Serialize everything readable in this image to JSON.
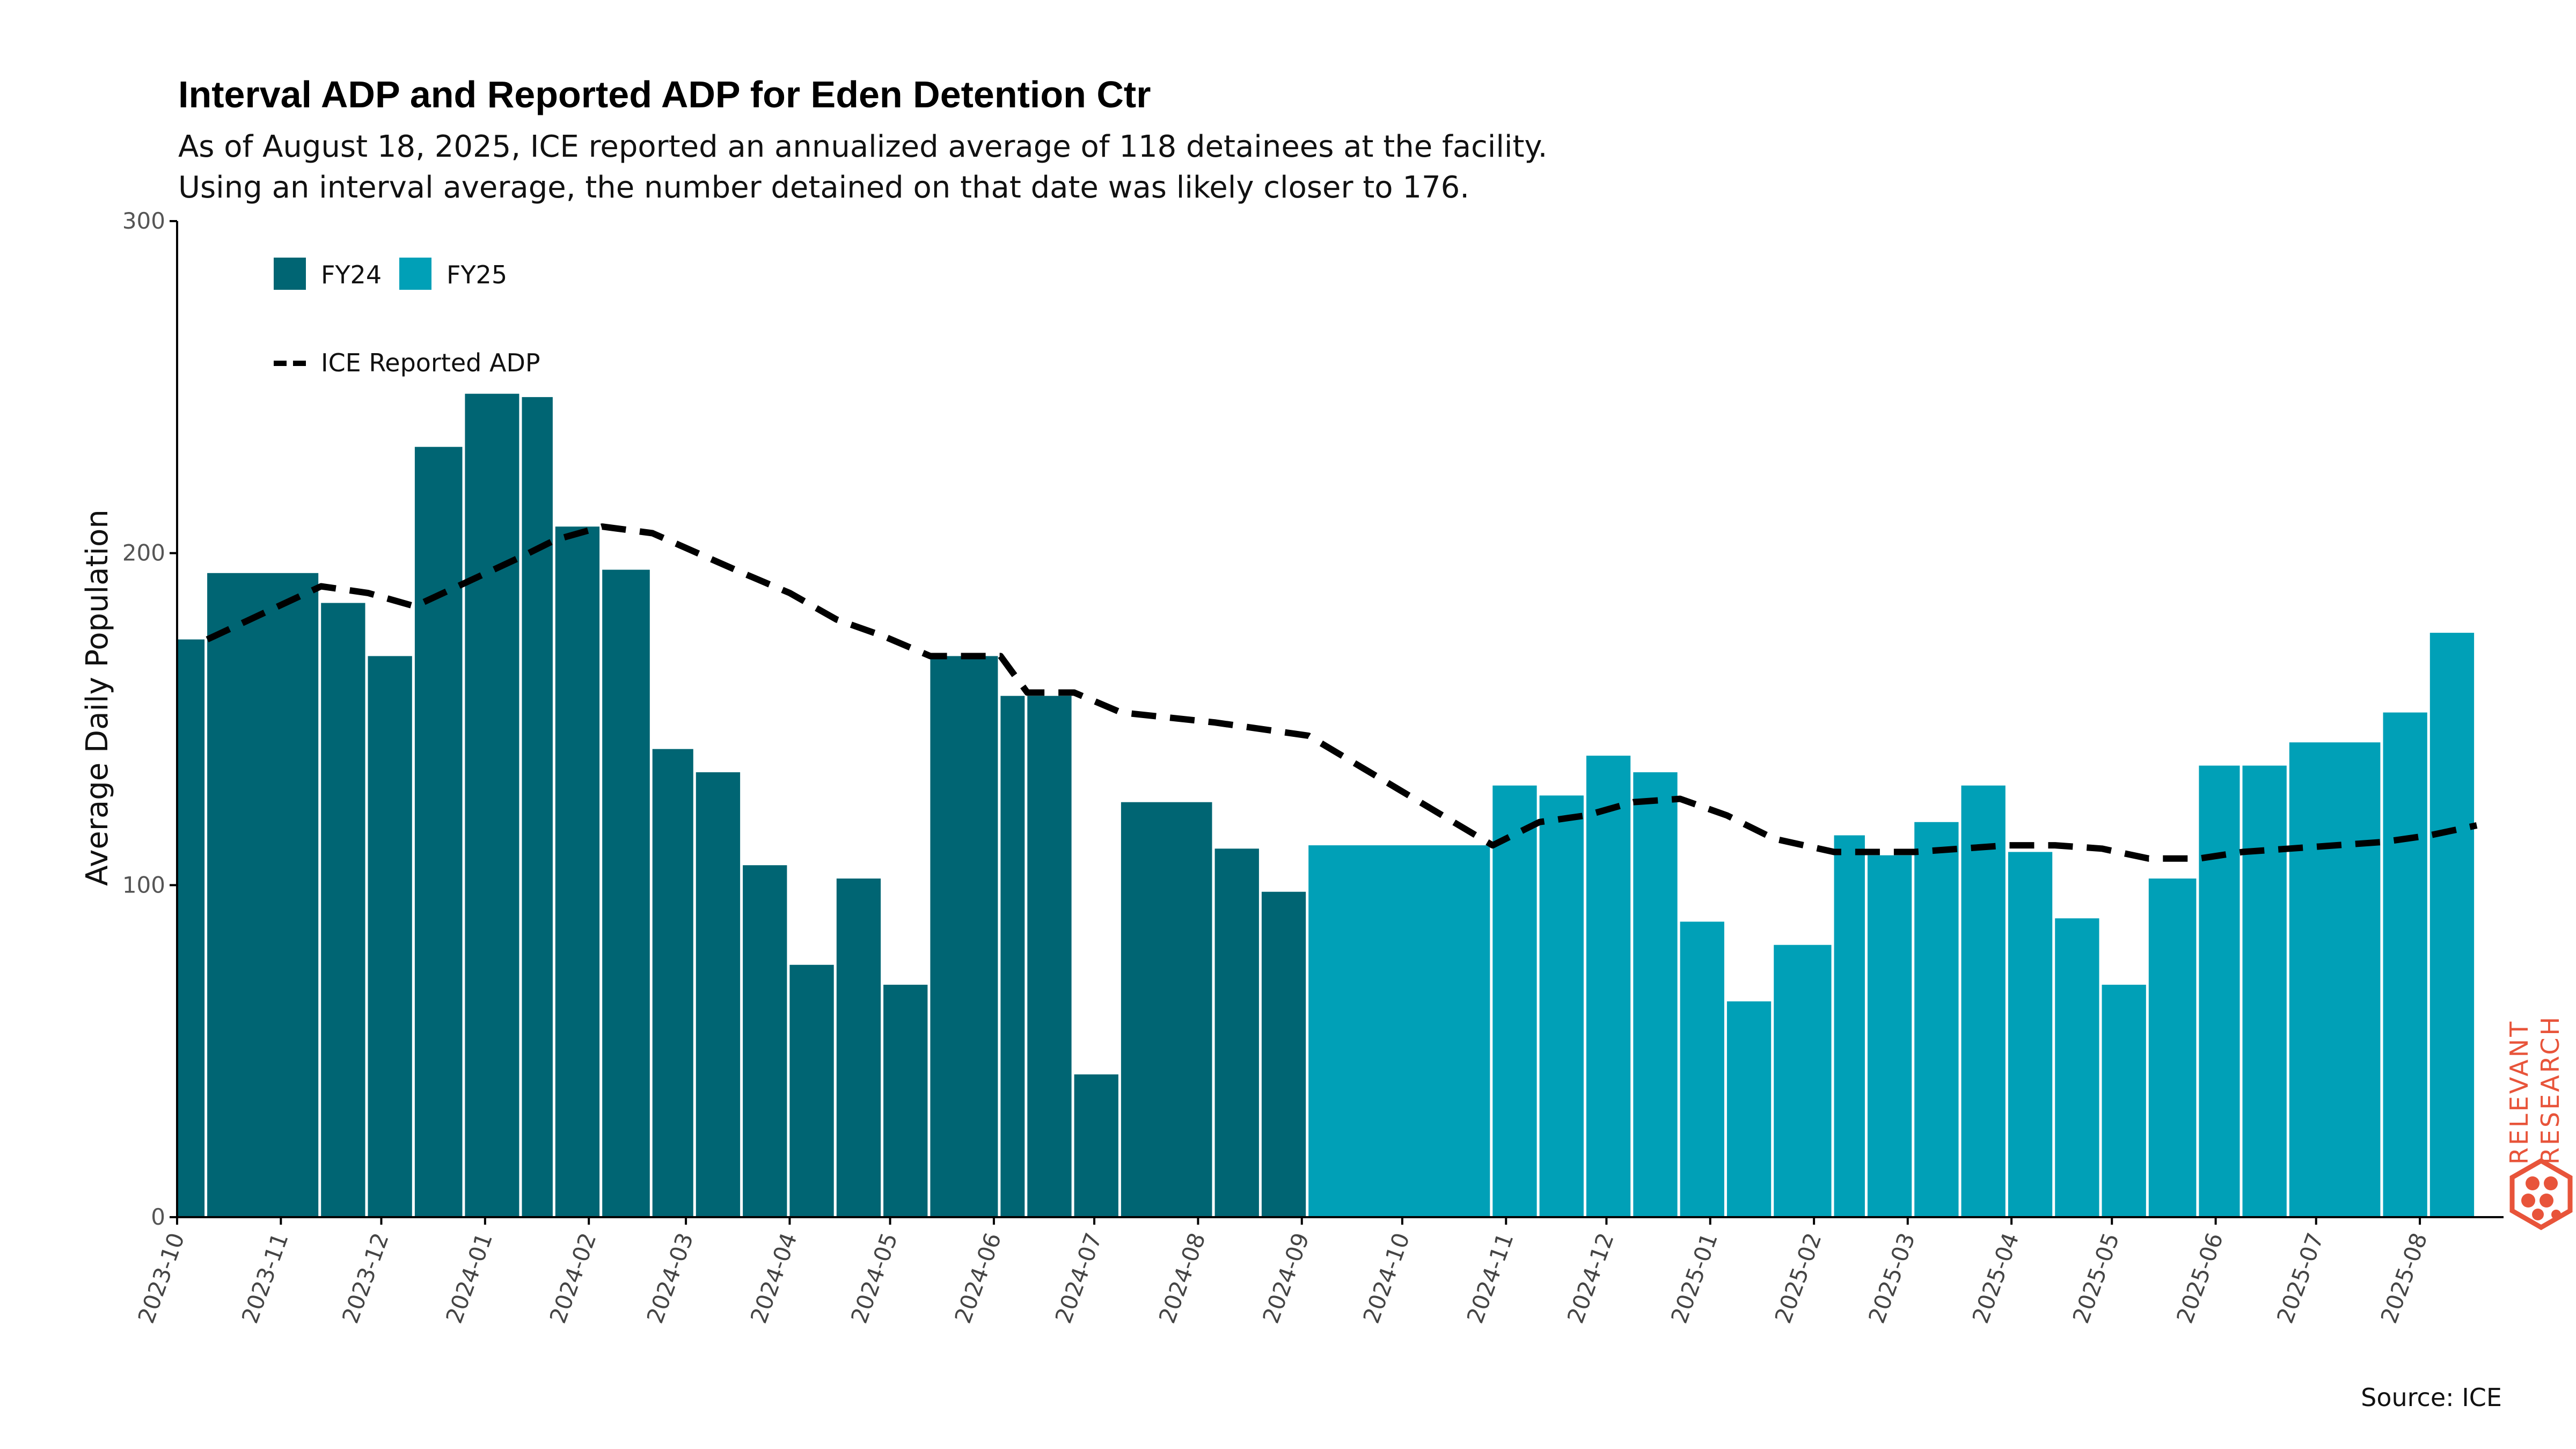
{
  "chart_data": {
    "type": "bar",
    "title": "Interval ADP and Reported ADP for Eden Detention Ctr",
    "subtitle_lines": [
      "As of August 18, 2025, ICE reported an annualized average of 118 detainees at the facility.",
      "Using an interval average, the number detained on that date was likely closer to 176."
    ],
    "ylabel": "Average Daily Population",
    "ylim": [
      0,
      300
    ],
    "yticks": [
      0,
      100,
      200,
      300
    ],
    "xlim": [
      "2023-10-01",
      "2025-08-26"
    ],
    "xticks": [
      "2023-10",
      "2023-11",
      "2023-12",
      "2024-01",
      "2024-02",
      "2024-03",
      "2024-04",
      "2024-05",
      "2024-06",
      "2024-07",
      "2024-08",
      "2024-09",
      "2024-10",
      "2024-11",
      "2024-12",
      "2025-01",
      "2025-02",
      "2025-03",
      "2025-04",
      "2025-05",
      "2025-06",
      "2025-07",
      "2025-08"
    ],
    "legend": {
      "placement": "top-left",
      "bar_entries": [
        "FY24",
        "FY25"
      ],
      "line_entry": "ICE Reported ADP"
    },
    "colors": {
      "FY24": "#006573",
      "FY25": "#00a0b7",
      "line": "#000000"
    },
    "series": [
      {
        "name": "FY24",
        "kind": "bar",
        "bars": [
          {
            "start": "2023-10-01",
            "end": "2023-10-10",
            "value": 174
          },
          {
            "start": "2023-10-10",
            "end": "2023-11-13",
            "value": 194
          },
          {
            "start": "2023-11-13",
            "end": "2023-11-27",
            "value": 185
          },
          {
            "start": "2023-11-27",
            "end": "2023-12-11",
            "value": 169
          },
          {
            "start": "2023-12-11",
            "end": "2023-12-26",
            "value": 232
          },
          {
            "start": "2023-12-26",
            "end": "2024-01-12",
            "value": 248
          },
          {
            "start": "2024-01-12",
            "end": "2024-01-22",
            "value": 247
          },
          {
            "start": "2024-01-22",
            "end": "2024-02-05",
            "value": 208
          },
          {
            "start": "2024-02-05",
            "end": "2024-02-20",
            "value": 195
          },
          {
            "start": "2024-02-20",
            "end": "2024-03-04",
            "value": 141
          },
          {
            "start": "2024-03-04",
            "end": "2024-03-18",
            "value": 134
          },
          {
            "start": "2024-03-18",
            "end": "2024-04-01",
            "value": 106
          },
          {
            "start": "2024-04-01",
            "end": "2024-04-15",
            "value": 76
          },
          {
            "start": "2024-04-15",
            "end": "2024-04-29",
            "value": 102
          },
          {
            "start": "2024-04-29",
            "end": "2024-05-13",
            "value": 70
          },
          {
            "start": "2024-05-13",
            "end": "2024-06-03",
            "value": 169
          },
          {
            "start": "2024-06-03",
            "end": "2024-06-11",
            "value": 157
          },
          {
            "start": "2024-06-11",
            "end": "2024-06-25",
            "value": 157
          },
          {
            "start": "2024-06-25",
            "end": "2024-07-09",
            "value": 43
          },
          {
            "start": "2024-07-09",
            "end": "2024-08-06",
            "value": 125
          },
          {
            "start": "2024-08-06",
            "end": "2024-08-20",
            "value": 111
          },
          {
            "start": "2024-08-20",
            "end": "2024-09-03",
            "value": 98
          }
        ]
      },
      {
        "name": "FY25",
        "kind": "bar",
        "bars": [
          {
            "start": "2024-09-03",
            "end": "2024-10-28",
            "value": 112
          },
          {
            "start": "2024-10-28",
            "end": "2024-11-11",
            "value": 130
          },
          {
            "start": "2024-11-11",
            "end": "2024-11-25",
            "value": 127
          },
          {
            "start": "2024-11-25",
            "end": "2024-12-09",
            "value": 139
          },
          {
            "start": "2024-12-09",
            "end": "2024-12-23",
            "value": 134
          },
          {
            "start": "2024-12-23",
            "end": "2025-01-06",
            "value": 89
          },
          {
            "start": "2025-01-06",
            "end": "2025-01-20",
            "value": 65
          },
          {
            "start": "2025-01-20",
            "end": "2025-02-07",
            "value": 82
          },
          {
            "start": "2025-02-07",
            "end": "2025-02-17",
            "value": 115
          },
          {
            "start": "2025-02-17",
            "end": "2025-03-03",
            "value": 109
          },
          {
            "start": "2025-03-03",
            "end": "2025-03-17",
            "value": 119
          },
          {
            "start": "2025-03-17",
            "end": "2025-03-31",
            "value": 130
          },
          {
            "start": "2025-03-31",
            "end": "2025-04-14",
            "value": 110
          },
          {
            "start": "2025-04-14",
            "end": "2025-04-28",
            "value": 90
          },
          {
            "start": "2025-04-28",
            "end": "2025-05-12",
            "value": 70
          },
          {
            "start": "2025-05-12",
            "end": "2025-05-27",
            "value": 102
          },
          {
            "start": "2025-05-27",
            "end": "2025-06-09",
            "value": 136
          },
          {
            "start": "2025-06-09",
            "end": "2025-06-23",
            "value": 136
          },
          {
            "start": "2025-06-23",
            "end": "2025-07-21",
            "value": 143
          },
          {
            "start": "2025-07-21",
            "end": "2025-08-04",
            "value": 152
          },
          {
            "start": "2025-08-04",
            "end": "2025-08-18",
            "value": 176
          }
        ]
      },
      {
        "name": "ICE Reported ADP",
        "kind": "line",
        "style": "dashed",
        "points": [
          {
            "x": "2023-10-10",
            "y": 174
          },
          {
            "x": "2023-11-13",
            "y": 190
          },
          {
            "x": "2023-11-27",
            "y": 188
          },
          {
            "x": "2023-12-11",
            "y": 184
          },
          {
            "x": "2024-01-12",
            "y": 199
          },
          {
            "x": "2024-01-22",
            "y": 204
          },
          {
            "x": "2024-02-05",
            "y": 208
          },
          {
            "x": "2024-02-20",
            "y": 206
          },
          {
            "x": "2024-03-18",
            "y": 194
          },
          {
            "x": "2024-04-01",
            "y": 188
          },
          {
            "x": "2024-04-15",
            "y": 180
          },
          {
            "x": "2024-04-29",
            "y": 175
          },
          {
            "x": "2024-05-13",
            "y": 169
          },
          {
            "x": "2024-06-03",
            "y": 169
          },
          {
            "x": "2024-06-11",
            "y": 158
          },
          {
            "x": "2024-06-25",
            "y": 158
          },
          {
            "x": "2024-07-09",
            "y": 152
          },
          {
            "x": "2024-08-06",
            "y": 149
          },
          {
            "x": "2024-09-03",
            "y": 145
          },
          {
            "x": "2024-10-28",
            "y": 112
          },
          {
            "x": "2024-11-11",
            "y": 119
          },
          {
            "x": "2024-11-25",
            "y": 121
          },
          {
            "x": "2024-12-09",
            "y": 125
          },
          {
            "x": "2024-12-23",
            "y": 126
          },
          {
            "x": "2025-01-06",
            "y": 121
          },
          {
            "x": "2025-01-20",
            "y": 114
          },
          {
            "x": "2025-02-07",
            "y": 110
          },
          {
            "x": "2025-02-17",
            "y": 110
          },
          {
            "x": "2025-03-03",
            "y": 110
          },
          {
            "x": "2025-03-17",
            "y": 111
          },
          {
            "x": "2025-03-31",
            "y": 112
          },
          {
            "x": "2025-04-14",
            "y": 112
          },
          {
            "x": "2025-04-28",
            "y": 111
          },
          {
            "x": "2025-05-12",
            "y": 108
          },
          {
            "x": "2025-05-27",
            "y": 108
          },
          {
            "x": "2025-06-09",
            "y": 110
          },
          {
            "x": "2025-06-23",
            "y": 111
          },
          {
            "x": "2025-07-21",
            "y": 113
          },
          {
            "x": "2025-08-04",
            "y": 115
          },
          {
            "x": "2025-08-18",
            "y": 118
          }
        ]
      }
    ],
    "grid": false
  },
  "source_text": "Source: ICE",
  "logo": {
    "lines": [
      "RELEVANT",
      "RESEARCH"
    ],
    "icon": "hexagon-dots-icon",
    "color": "#e8543a"
  }
}
